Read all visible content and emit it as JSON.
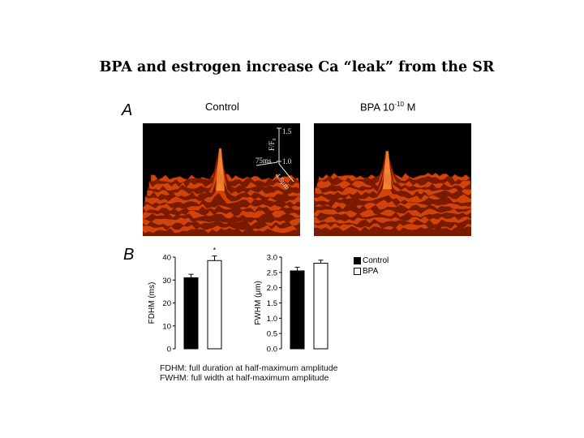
{
  "slide": {
    "title": "BPA and estrogen increase Ca “leak” from the SR"
  },
  "panel_a": {
    "letter": "A",
    "left_title": "Control",
    "right_title_base": "BPA 10",
    "right_title_exp": "-10",
    "right_title_unit": " M",
    "scale": {
      "z_label": "F/F₀",
      "z_ticks": [
        "1.5",
        "1.0"
      ],
      "time_label": "75ms",
      "space_label": "4.5μm"
    },
    "colors": {
      "surface_dark": "#7a1a00",
      "surface_mid": "#d0440a",
      "surface_peak": "#ff8c3a",
      "background": "#000000"
    }
  },
  "panel_b": {
    "letter": "B",
    "legend": [
      {
        "label": "Control",
        "fill": "#000000"
      },
      {
        "label": "BPA",
        "fill": "#ffffff"
      }
    ],
    "footnotes": [
      "FDHM:  full duration at half-maximum amplitude",
      "FWHM:  full width at half-maximum amplitude"
    ]
  },
  "chart_data": [
    {
      "type": "bar",
      "categories": [
        "Control",
        "BPA"
      ],
      "values": [
        31,
        38.5
      ],
      "errors": [
        1.5,
        2
      ],
      "colors": [
        "#000000",
        "#ffffff"
      ],
      "significance": [
        "",
        "*"
      ],
      "ylabel": "FDHM (ms)",
      "ylim": [
        0,
        40
      ],
      "yticks": [
        "0",
        "10",
        "20",
        "30",
        "40"
      ]
    },
    {
      "type": "bar",
      "categories": [
        "Control",
        "BPA"
      ],
      "values": [
        2.55,
        2.8
      ],
      "errors": [
        0.12,
        0.1
      ],
      "colors": [
        "#000000",
        "#ffffff"
      ],
      "significance": [
        "",
        ""
      ],
      "ylabel": "FWHM (μm)",
      "ylim": [
        0,
        3.0
      ],
      "yticks": [
        "0.0",
        "0.5",
        "1.0",
        "1.5",
        "2.0",
        "2.5",
        "3.0"
      ]
    }
  ]
}
